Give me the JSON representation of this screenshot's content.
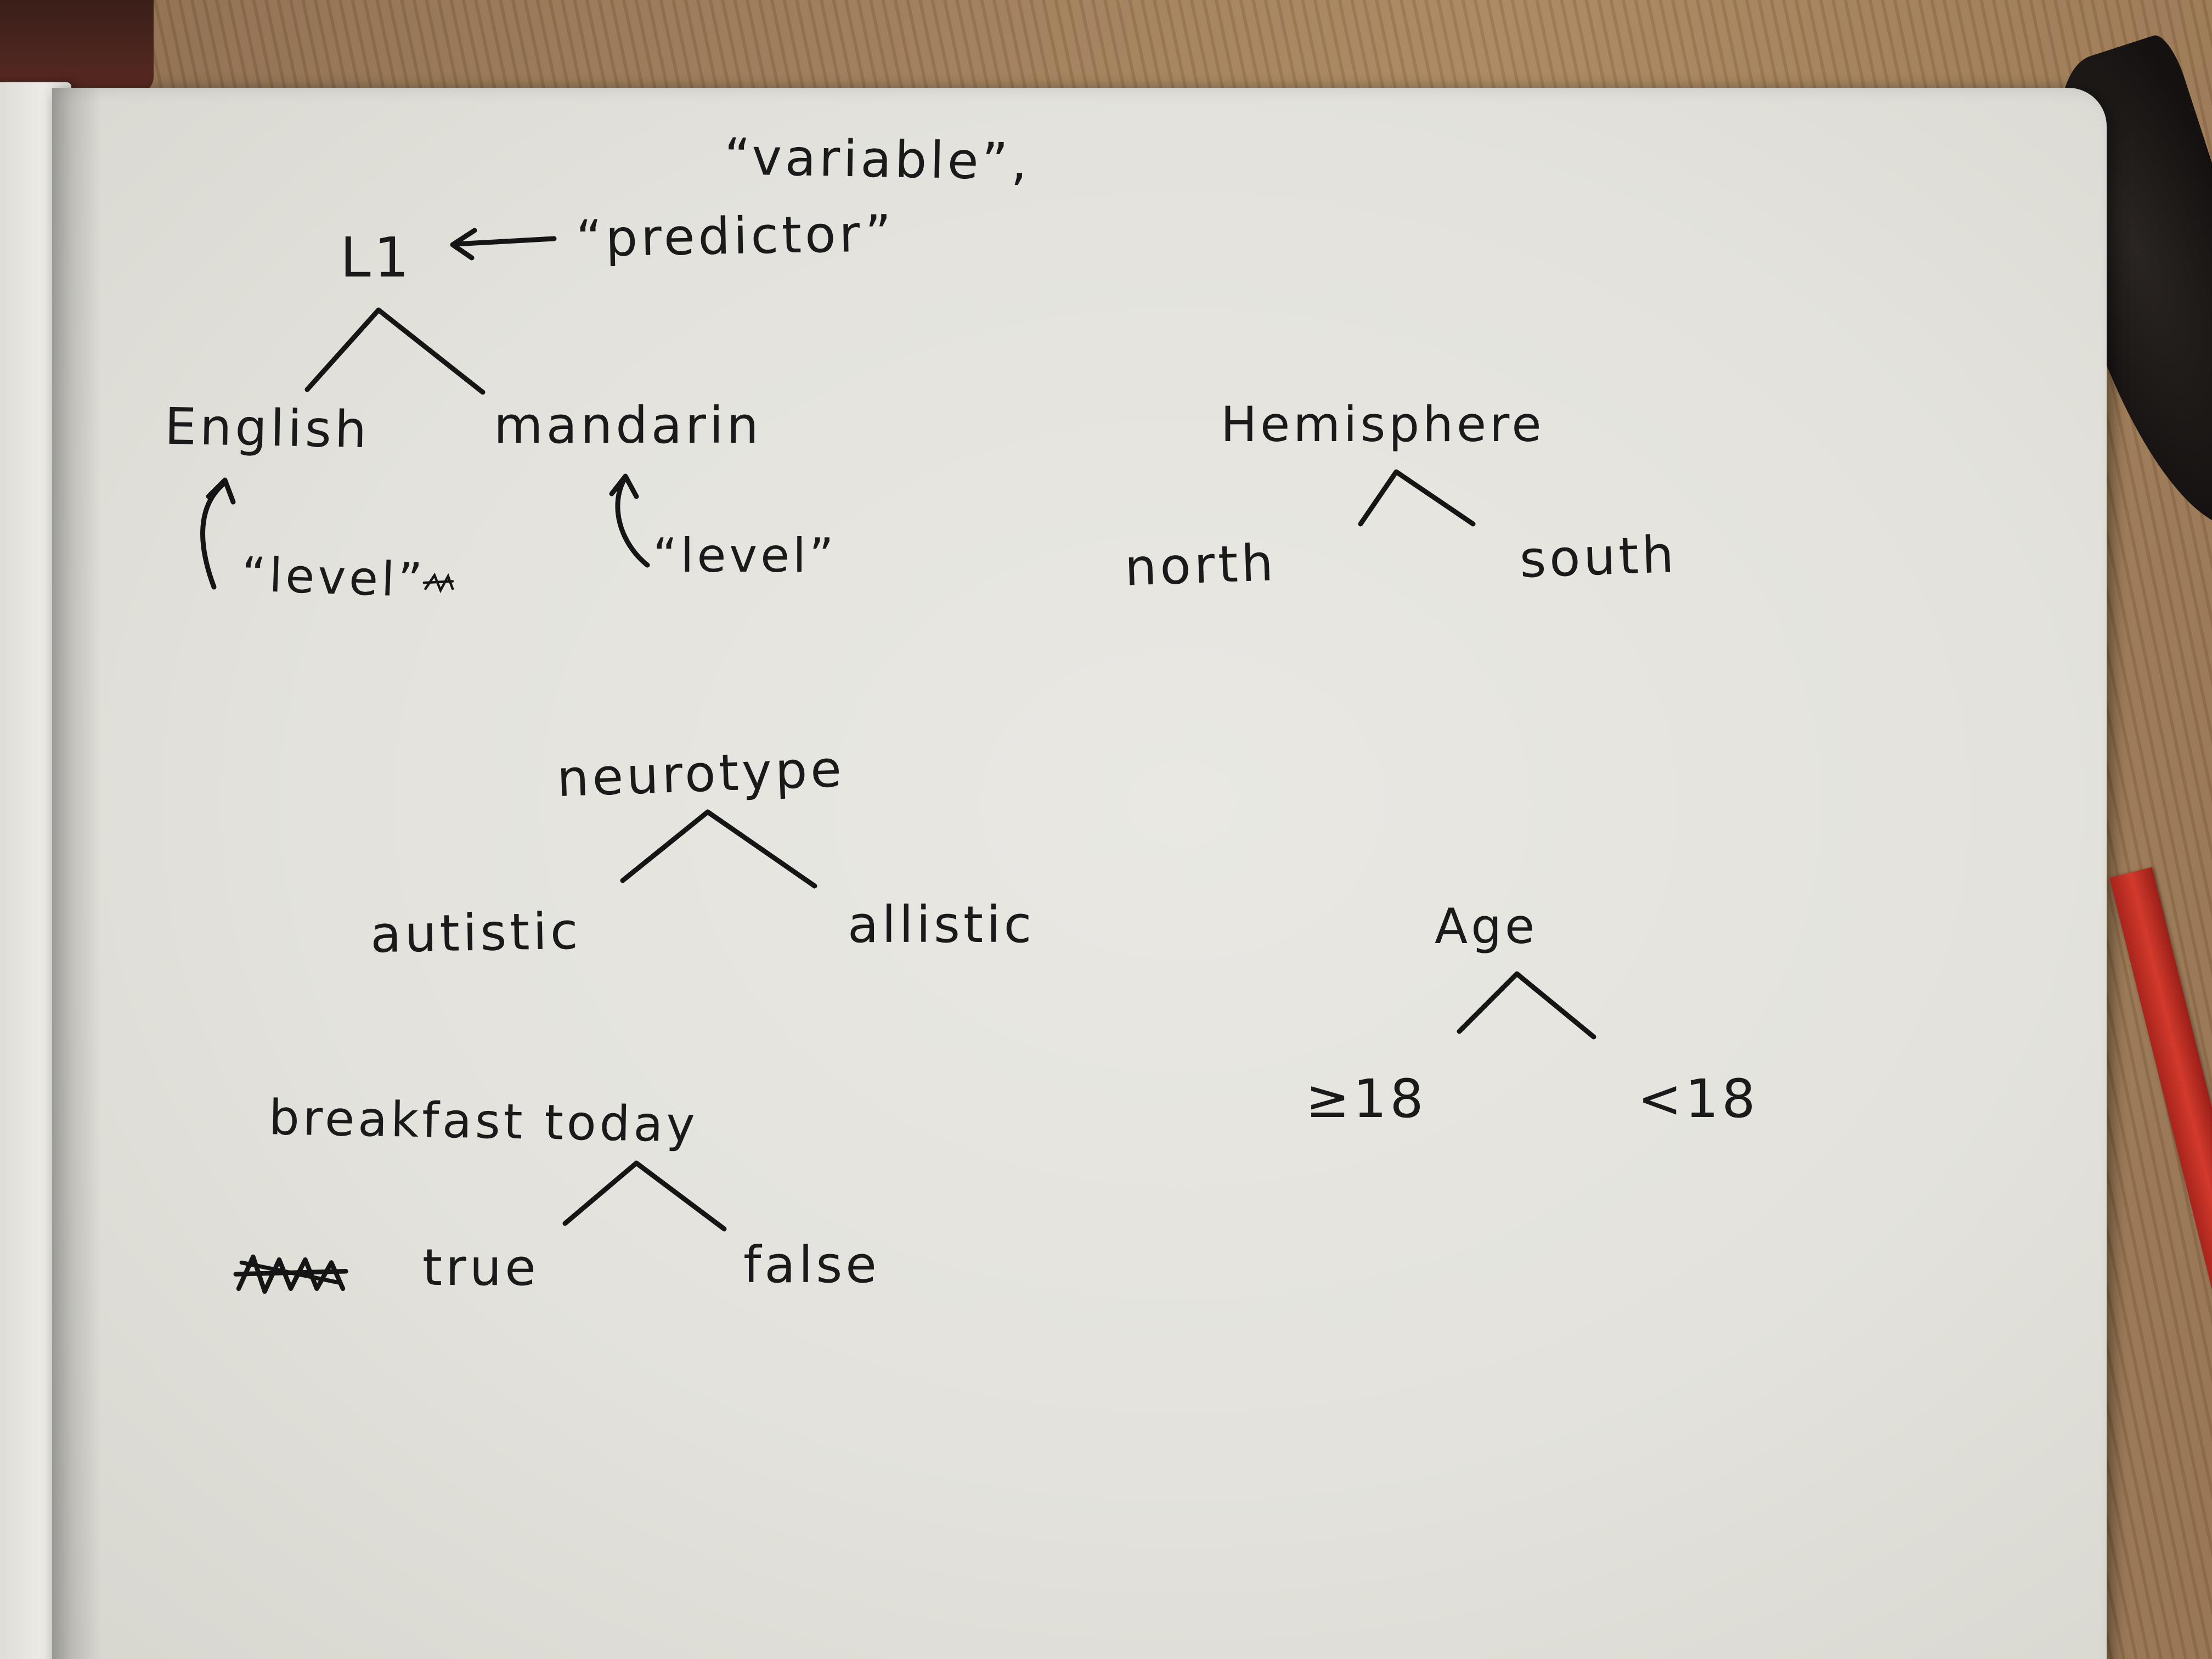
{
  "notes": {
    "variable_label": "“variable”,",
    "predictor_label": "“predictor”",
    "l1_label": "L1",
    "english_label": "English",
    "mandarin_label": "mandarin",
    "level_label_english": "“level”",
    "level_label_mandarin": "“level”",
    "hemisphere_label": "Hemisphere",
    "north_label": "north",
    "south_label": "south",
    "neurotype_label": "neurotype",
    "autistic_label": "autistic",
    "allistic_label": "allistic",
    "age_label": "Age",
    "age_adult_label": "≥18",
    "age_minor_label": "<18",
    "breakfast_label": "breakfast today",
    "true_label": "true",
    "false_label": "false"
  },
  "colors": {
    "ink": "#151515",
    "paper": "#e6e5e0",
    "table": "#9c7a58",
    "elastic": "#d23a2c"
  }
}
